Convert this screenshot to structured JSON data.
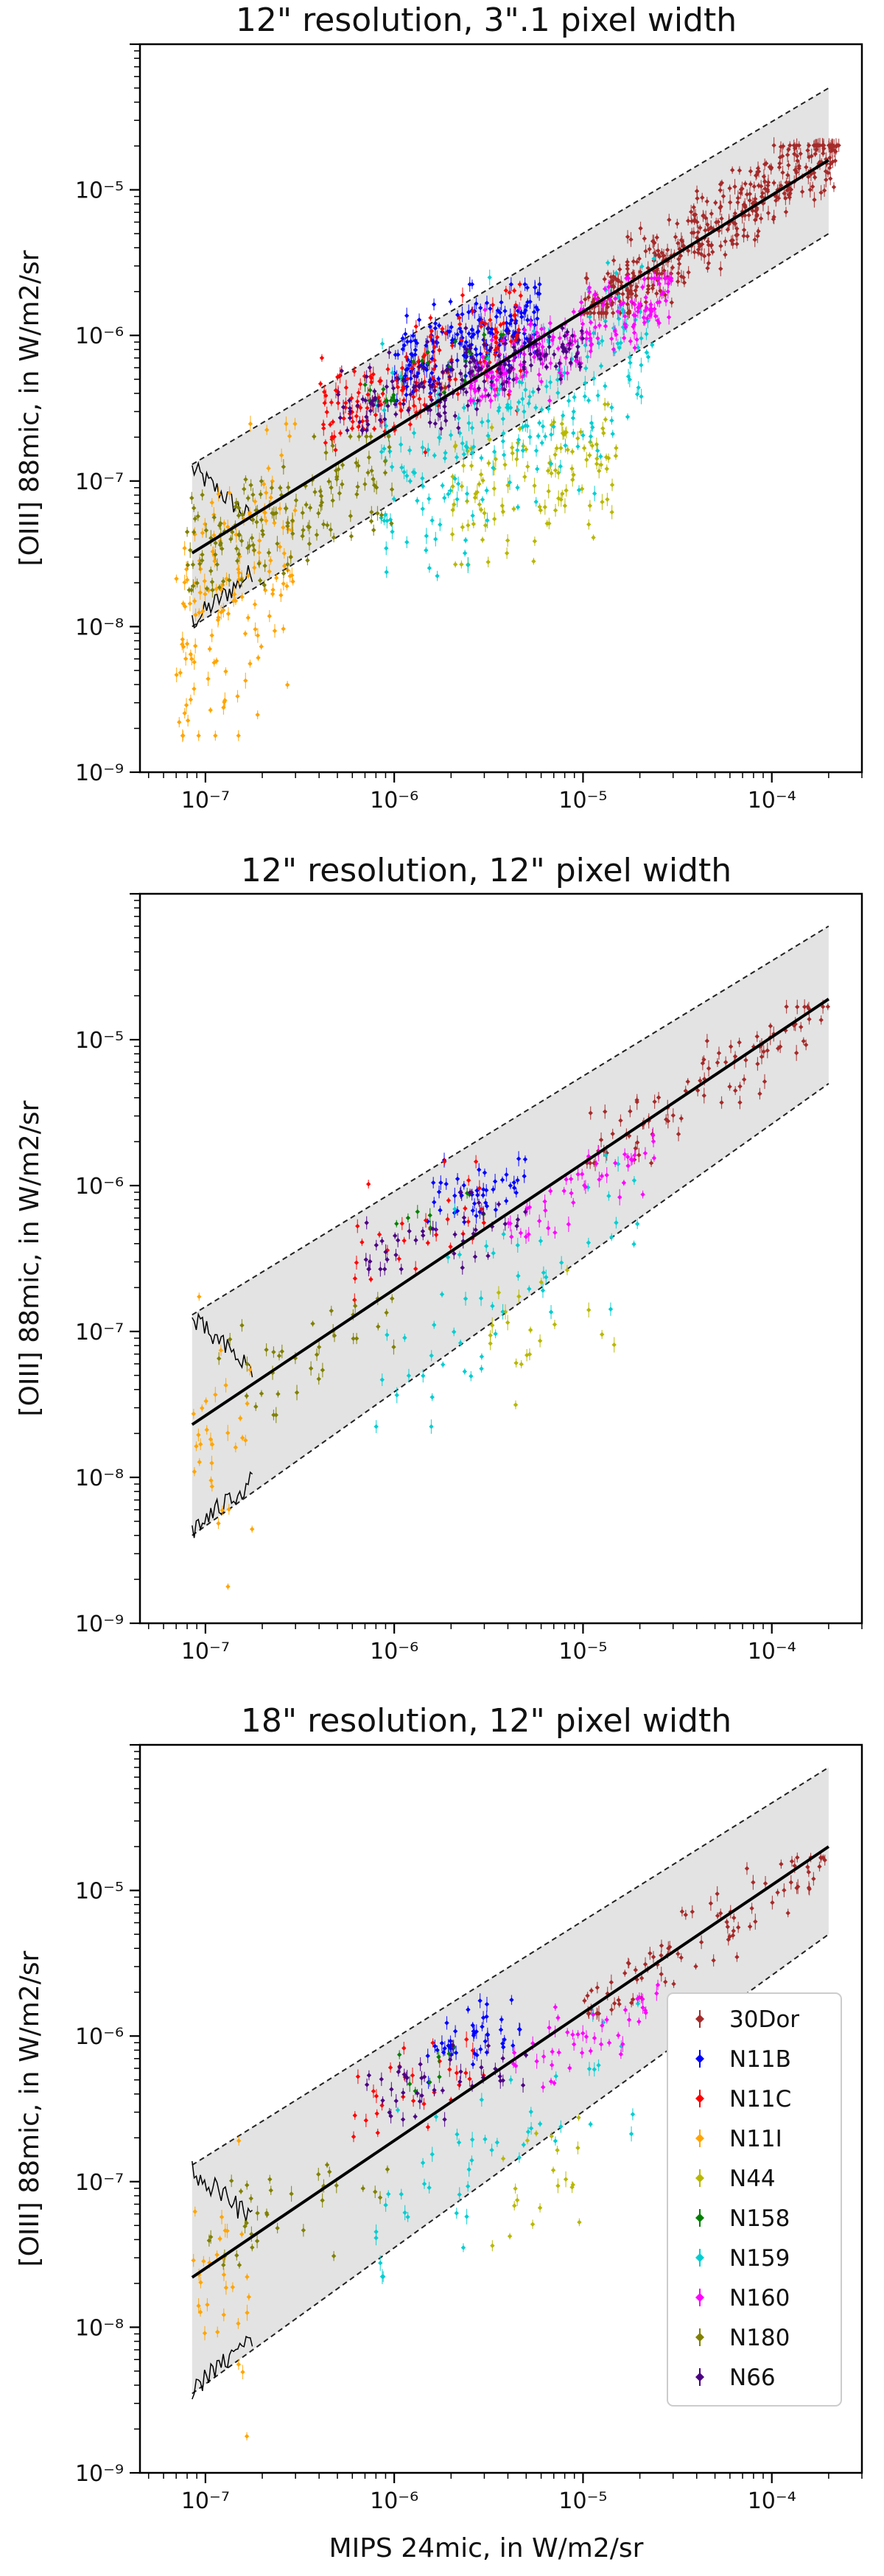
{
  "figure": {
    "xlabel": "MIPS 24mic, in W/m2/sr",
    "ylabel": "[OIII] 88mic, in W/m2/sr",
    "legend_position": "lower-right of third panel",
    "sources": [
      "30Dor",
      "N11B",
      "N11C",
      "N11I",
      "N44",
      "N158",
      "N159",
      "N160",
      "N180",
      "N66"
    ],
    "source_colors": {
      "30Dor": "#a52a2a",
      "N11B": "#0000ff",
      "N11C": "#ff0000",
      "N11I": "#ffa500",
      "N44": "#b8b800",
      "N158": "#008000",
      "N159": "#00ced1",
      "N160": "#ff00ff",
      "N180": "#808000",
      "N66": "#4b0082"
    },
    "fit_color": "#000000",
    "band_color": "#e3e3e3"
  },
  "chart_data": [
    {
      "type": "scatter",
      "title": "12\" resolution, 3\".1 pixel width",
      "xscale": "log",
      "yscale": "log",
      "xlim": [
        4.5e-08,
        0.0003
      ],
      "ylim": [
        1e-09,
        0.0001
      ],
      "xticks": [
        "10⁻⁷",
        "10⁻⁶",
        "10⁻⁵",
        "10⁻⁴"
      ],
      "yticks": [
        "10⁻⁹",
        "10⁻⁸",
        "10⁻⁷",
        "10⁻⁶",
        "10⁻⁵"
      ],
      "fit_line": {
        "x": [
          8.5e-08,
          0.0002
        ],
        "y": [
          3.2e-08,
          1.6e-05
        ]
      },
      "band": {
        "x": [
          8.5e-08,
          0.0002
        ],
        "upper": [
          1.3e-07,
          5e-05
        ],
        "lower": [
          1e-08,
          5e-06
        ]
      },
      "series": [
        {
          "name": "30Dor",
          "x_range": [
            1e-05,
            0.00023
          ],
          "y_range": [
            1.6e-06,
            1.8e-05
          ],
          "n": 420,
          "slope": 0.9,
          "scatter": 0.13
        },
        {
          "name": "N11B",
          "x_range": [
            1e-06,
            6e-06
          ],
          "y_range": [
            4e-07,
            2e-06
          ],
          "n": 200,
          "slope": 0.4,
          "scatter": 0.16
        },
        {
          "name": "N11C",
          "x_range": [
            4e-07,
            5e-06
          ],
          "y_range": [
            1.5e-07,
            2e-06
          ],
          "n": 170,
          "slope": 0.6,
          "scatter": 0.2
        },
        {
          "name": "N11I",
          "x_range": [
            7e-08,
            3e-07
          ],
          "y_range": [
            2e-09,
            2.2e-07
          ],
          "n": 150,
          "slope": 1.5,
          "scatter": 0.45
        },
        {
          "name": "N44",
          "x_range": [
            2e-06,
            1.5e-05
          ],
          "y_range": [
            3e-08,
            3e-07
          ],
          "n": 120,
          "slope": 0.5,
          "scatter": 0.25
        },
        {
          "name": "N158",
          "x_range": [
            7e-07,
            4e-06
          ],
          "y_range": [
            4e-07,
            9e-07
          ],
          "n": 30,
          "slope": 0.5,
          "scatter": 0.12
        },
        {
          "name": "N159",
          "x_range": [
            8e-07,
            2.5e-05
          ],
          "y_range": [
            2.5e-08,
            3e-06
          ],
          "n": 230,
          "slope": 0.75,
          "scatter": 0.32
        },
        {
          "name": "N160",
          "x_range": [
            2.5e-06,
            3e-05
          ],
          "y_range": [
            4e-07,
            2.2e-06
          ],
          "n": 220,
          "slope": 0.6,
          "scatter": 0.14
        },
        {
          "name": "N180",
          "x_range": [
            8e-08,
            1e-06
          ],
          "y_range": [
            2e-08,
            1.8e-07
          ],
          "n": 160,
          "slope": 0.5,
          "scatter": 0.2
        },
        {
          "name": "N66",
          "x_range": [
            5e-07,
            1e-05
          ],
          "y_range": [
            2.5e-07,
            1e-06
          ],
          "n": 180,
          "slope": 0.4,
          "scatter": 0.13
        }
      ]
    },
    {
      "type": "scatter",
      "title": "12\" resolution, 12\" pixel width",
      "xscale": "log",
      "yscale": "log",
      "xlim": [
        4.5e-08,
        0.0003
      ],
      "ylim": [
        1e-09,
        0.0001
      ],
      "xticks": [
        "10⁻⁷",
        "10⁻⁶",
        "10⁻⁵",
        "10⁻⁴"
      ],
      "yticks": [
        "10⁻⁹",
        "10⁻⁸",
        "10⁻⁷",
        "10⁻⁶",
        "10⁻⁵"
      ],
      "fit_line": {
        "x": [
          8.5e-08,
          0.0002
        ],
        "y": [
          2.3e-08,
          1.9e-05
        ]
      },
      "band": {
        "x": [
          8.5e-08,
          0.0002
        ],
        "upper": [
          1.3e-07,
          6e-05
        ],
        "lower": [
          4e-09,
          5e-06
        ]
      },
      "series": [
        {
          "name": "30Dor",
          "x_range": [
            1e-05,
            0.0002
          ],
          "y_range": [
            1.6e-06,
            1.5e-05
          ],
          "n": 90,
          "slope": 0.9,
          "scatter": 0.12
        },
        {
          "name": "N11B",
          "x_range": [
            1.5e-06,
            5e-06
          ],
          "y_range": [
            5e-07,
            1.6e-06
          ],
          "n": 45,
          "slope": 0.4,
          "scatter": 0.12
        },
        {
          "name": "N11C",
          "x_range": [
            6e-07,
            3e-06
          ],
          "y_range": [
            1.5e-07,
            1.3e-06
          ],
          "n": 30,
          "slope": 0.6,
          "scatter": 0.18
        },
        {
          "name": "N11I",
          "x_range": [
            8.5e-08,
            1.8e-07
          ],
          "y_range": [
            2e-09,
            1.7e-07
          ],
          "n": 30,
          "slope": 1.5,
          "scatter": 0.4
        },
        {
          "name": "N44",
          "x_range": [
            3e-06,
            1.5e-05
          ],
          "y_range": [
            3.5e-08,
            2.5e-07
          ],
          "n": 20,
          "slope": 0.5,
          "scatter": 0.22
        },
        {
          "name": "N158",
          "x_range": [
            1e-06,
            3e-06
          ],
          "y_range": [
            4e-07,
            8e-07
          ],
          "n": 8,
          "slope": 0.5,
          "scatter": 0.1
        },
        {
          "name": "N159",
          "x_range": [
            8e-07,
            2e-05
          ],
          "y_range": [
            2.5e-08,
            2e-06
          ],
          "n": 50,
          "slope": 0.75,
          "scatter": 0.28
        },
        {
          "name": "N160",
          "x_range": [
            4e-06,
            2.5e-05
          ],
          "y_range": [
            5e-07,
            2e-06
          ],
          "n": 45,
          "slope": 0.6,
          "scatter": 0.12
        },
        {
          "name": "N180",
          "x_range": [
            1e-07,
            1e-06
          ],
          "y_range": [
            3e-08,
            1.5e-07
          ],
          "n": 35,
          "slope": 0.5,
          "scatter": 0.18
        },
        {
          "name": "N66",
          "x_range": [
            7e-07,
            5e-06
          ],
          "y_range": [
            3e-07,
            8e-07
          ],
          "n": 40,
          "slope": 0.4,
          "scatter": 0.12
        }
      ]
    },
    {
      "type": "scatter",
      "title": "18\" resolution, 12\" pixel width",
      "xscale": "log",
      "yscale": "log",
      "xlim": [
        4.5e-08,
        0.0003
      ],
      "ylim": [
        1e-09,
        0.0001
      ],
      "xticks": [
        "10⁻⁷",
        "10⁻⁶",
        "10⁻⁵",
        "10⁻⁴"
      ],
      "yticks": [
        "10⁻⁹",
        "10⁻⁸",
        "10⁻⁷",
        "10⁻⁶",
        "10⁻⁵"
      ],
      "fit_line": {
        "x": [
          8.5e-08,
          0.0002
        ],
        "y": [
          2.2e-08,
          2e-05
        ]
      },
      "band": {
        "x": [
          8.5e-08,
          0.0002
        ],
        "upper": [
          1.3e-07,
          7e-05
        ],
        "lower": [
          3.5e-09,
          5e-06
        ]
      },
      "legend": [
        "30Dor",
        "N11B",
        "N11C",
        "N11I",
        "N44",
        "N158",
        "N159",
        "N160",
        "N180",
        "N66"
      ],
      "series": [
        {
          "name": "30Dor",
          "x_range": [
            1e-05,
            0.0002
          ],
          "y_range": [
            1.6e-06,
            1.5e-05
          ],
          "n": 90,
          "slope": 0.9,
          "scatter": 0.12
        },
        {
          "name": "N11B",
          "x_range": [
            1.5e-06,
            5e-06
          ],
          "y_range": [
            5e-07,
            1.6e-06
          ],
          "n": 45,
          "slope": 0.4,
          "scatter": 0.12
        },
        {
          "name": "N11C",
          "x_range": [
            6e-07,
            3e-06
          ],
          "y_range": [
            1.5e-07,
            1.3e-06
          ],
          "n": 30,
          "slope": 0.6,
          "scatter": 0.18
        },
        {
          "name": "N11I",
          "x_range": [
            8.5e-08,
            1.8e-07
          ],
          "y_range": [
            2e-09,
            1.7e-07
          ],
          "n": 30,
          "slope": 1.5,
          "scatter": 0.4
        },
        {
          "name": "N44",
          "x_range": [
            3e-06,
            1.5e-05
          ],
          "y_range": [
            3.5e-08,
            2.5e-07
          ],
          "n": 20,
          "slope": 0.5,
          "scatter": 0.22
        },
        {
          "name": "N158",
          "x_range": [
            1e-06,
            3e-06
          ],
          "y_range": [
            4e-07,
            8e-07
          ],
          "n": 8,
          "slope": 0.5,
          "scatter": 0.1
        },
        {
          "name": "N159",
          "x_range": [
            8e-07,
            2e-05
          ],
          "y_range": [
            2.5e-08,
            2e-06
          ],
          "n": 50,
          "slope": 0.75,
          "scatter": 0.28
        },
        {
          "name": "N160",
          "x_range": [
            4e-06,
            2.5e-05
          ],
          "y_range": [
            5e-07,
            2e-06
          ],
          "n": 45,
          "slope": 0.6,
          "scatter": 0.12
        },
        {
          "name": "N180",
          "x_range": [
            1e-07,
            1e-06
          ],
          "y_range": [
            3e-08,
            1.5e-07
          ],
          "n": 35,
          "slope": 0.5,
          "scatter": 0.18
        },
        {
          "name": "N66",
          "x_range": [
            7e-07,
            5e-06
          ],
          "y_range": [
            3e-07,
            8e-07
          ],
          "n": 40,
          "slope": 0.4,
          "scatter": 0.12
        }
      ]
    }
  ]
}
